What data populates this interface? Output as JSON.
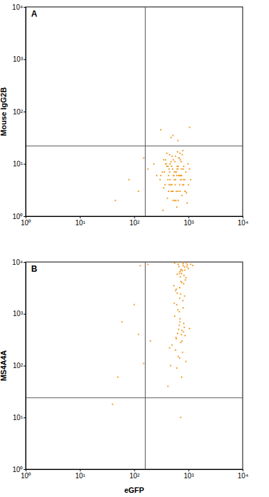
{
  "chart_data": [
    {
      "type": "scatter",
      "title": "A",
      "ylabel": "Mouse IgG2B",
      "log": true,
      "color": "#f0a030",
      "xlim": [
        1,
        10000
      ],
      "ylim": [
        1,
        10000
      ],
      "xticks": [
        {
          "value": 1,
          "label": "10⁰"
        },
        {
          "value": 10,
          "label": "10¹"
        },
        {
          "value": 100,
          "label": "10²"
        },
        {
          "value": 1000,
          "label": "10³"
        },
        {
          "value": 10000,
          "label": "10⁴"
        }
      ],
      "yticks": [
        {
          "value": 1,
          "label": "10⁰"
        },
        {
          "value": 10,
          "label": "10¹"
        },
        {
          "value": 100,
          "label": "10²"
        },
        {
          "value": 1000,
          "label": "10³"
        },
        {
          "value": 10000,
          "label": "10⁴"
        }
      ],
      "quadrant_x": 160,
      "quadrant_y": 22,
      "x": [
        420,
        510,
        600,
        380,
        700,
        820,
        450,
        560,
        650,
        900,
        350,
        480,
        530,
        610,
        720,
        390,
        470,
        580,
        680,
        760,
        310,
        440,
        520,
        630,
        850,
        1000,
        400,
        500,
        590,
        670,
        740,
        360,
        430,
        550,
        620,
        700,
        780,
        950,
        460,
        540,
        640,
        710,
        810,
        330,
        410,
        490,
        570,
        660,
        750,
        880,
        1050,
        300,
        380,
        520,
        600,
        690,
        770,
        430,
        480,
        560,
        640,
        730,
        820,
        920,
        370,
        450,
        530,
        610,
        700,
        790,
        1100,
        340,
        420,
        500,
        580,
        660,
        740,
        860,
        980,
        460,
        550,
        650,
        350,
        440,
        720,
        620,
        510,
        400,
        580,
        800,
        45,
        80,
        120,
        180,
        150,
        260,
        230,
        310,
        520,
        640,
        1050,
        480
      ],
      "y": [
        5,
        8,
        3,
        12,
        6,
        4,
        15,
        2,
        9,
        7,
        3.5,
        11,
        6,
        1.5,
        5,
        10,
        4,
        7,
        13,
        2.5,
        6,
        8,
        3,
        17,
        5,
        4,
        9,
        14,
        2,
        6,
        11,
        7,
        3,
        5,
        8,
        16,
        4,
        1.8,
        10,
        6,
        3,
        12,
        5,
        7,
        2.2,
        9,
        4,
        13,
        6,
        3,
        8,
        5,
        10,
        2,
        7,
        4,
        15,
        6,
        3,
        11,
        8,
        5,
        9,
        2.8,
        4,
        7,
        12,
        6,
        3,
        18,
        5,
        1.3,
        9,
        4,
        14,
        6,
        8,
        3,
        10,
        5,
        7,
        2,
        12,
        4,
        6,
        9,
        3,
        16,
        5,
        8,
        2,
        5,
        3,
        8,
        13,
        6,
        10,
        45,
        35,
        28,
        50,
        32
      ]
    },
    {
      "type": "scatter",
      "title": "B",
      "xlabel": "eGFP",
      "ylabel": "MS4A4A",
      "log": true,
      "color": "#f0a030",
      "xlim": [
        1,
        10000
      ],
      "ylim": [
        1,
        10000
      ],
      "xticks": [
        {
          "value": 1,
          "label": "10⁰"
        },
        {
          "value": 10,
          "label": "10¹"
        },
        {
          "value": 100,
          "label": "10²"
        },
        {
          "value": 1000,
          "label": "10³"
        },
        {
          "value": 10000,
          "label": "10⁴"
        }
      ],
      "yticks": [
        {
          "value": 1,
          "label": "10⁰"
        },
        {
          "value": 10,
          "label": "10¹"
        },
        {
          "value": 100,
          "label": "10²"
        },
        {
          "value": 1000,
          "label": "10³"
        },
        {
          "value": 10000,
          "label": "10⁴"
        }
      ],
      "quadrant_x": 160,
      "quadrant_y": 24,
      "x": [
        650,
        720,
        800,
        900,
        560,
        680,
        760,
        850,
        1000,
        600,
        700,
        780,
        620,
        830,
        950,
        540,
        690,
        740,
        880,
        1100,
        610,
        670,
        750,
        820,
        920,
        580,
        710,
        790,
        860,
        1200,
        640,
        730,
        800,
        690,
        770,
        850,
        560,
        620,
        940,
        700,
        660,
        740,
        810,
        590,
        680,
        760,
        870,
        1050,
        630,
        720,
        500,
        580,
        650,
        780,
        900,
        470,
        700,
        820,
        610,
        750,
        680,
        550,
        720,
        840,
        600,
        760,
        450,
        690,
        800,
        640,
        60,
        100,
        120,
        130,
        50,
        40,
        180,
        200,
        150,
        420,
        720
      ],
      "y": [
        9000,
        7000,
        8500,
        5000,
        9500,
        6000,
        4000,
        8000,
        7500,
        3000,
        6500,
        9800,
        2500,
        5500,
        8800,
        3500,
        2000,
        7200,
        4500,
        9000,
        1500,
        8200,
        6000,
        3800,
        9600,
        2800,
        5200,
        1800,
        7000,
        8600,
        1200,
        4200,
        9300,
        3200,
        6800,
        2200,
        900,
        5800,
        8000,
        700,
        500,
        400,
        450,
        350,
        600,
        300,
        380,
        520,
        420,
        280,
        250,
        200,
        150,
        180,
        120,
        100,
        800,
        650,
        90,
        60,
        1100,
        1600,
        2400,
        550,
        330,
        480,
        220,
        140,
        1300,
        9900,
        700,
        1500,
        400,
        8500,
        60,
        18,
        9000,
        300,
        110,
        40,
        10
      ]
    }
  ]
}
